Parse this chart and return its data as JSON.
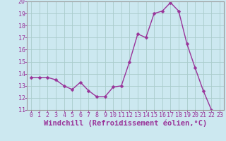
{
  "x": [
    0,
    1,
    2,
    3,
    4,
    5,
    6,
    7,
    8,
    9,
    10,
    11,
    12,
    13,
    14,
    15,
    16,
    17,
    18,
    19,
    20,
    21,
    22,
    23
  ],
  "y": [
    13.7,
    13.7,
    13.7,
    13.5,
    13.0,
    12.7,
    13.3,
    12.6,
    12.1,
    12.1,
    12.9,
    13.0,
    15.0,
    17.3,
    17.0,
    19.0,
    19.2,
    19.9,
    19.2,
    16.5,
    14.5,
    12.6,
    11.0,
    10.7
  ],
  "line_color": "#993399",
  "marker_color": "#993399",
  "background_color": "#cce8f0",
  "grid_color": "#aacccc",
  "xlabel": "Windchill (Refroidissement éolien,°C)",
  "xlabel_color": "#993399",
  "ylim": [
    11,
    20
  ],
  "xlim": [
    -0.5,
    23.5
  ],
  "yticks": [
    11,
    12,
    13,
    14,
    15,
    16,
    17,
    18,
    19,
    20
  ],
  "xticks": [
    0,
    1,
    2,
    3,
    4,
    5,
    6,
    7,
    8,
    9,
    10,
    11,
    12,
    13,
    14,
    15,
    16,
    17,
    18,
    19,
    20,
    21,
    22,
    23
  ],
  "tick_color": "#993399",
  "tick_fontsize": 6.0,
  "xlabel_fontsize": 7.5,
  "spine_color": "#999999",
  "line_width": 1.0,
  "marker_size": 2.5
}
